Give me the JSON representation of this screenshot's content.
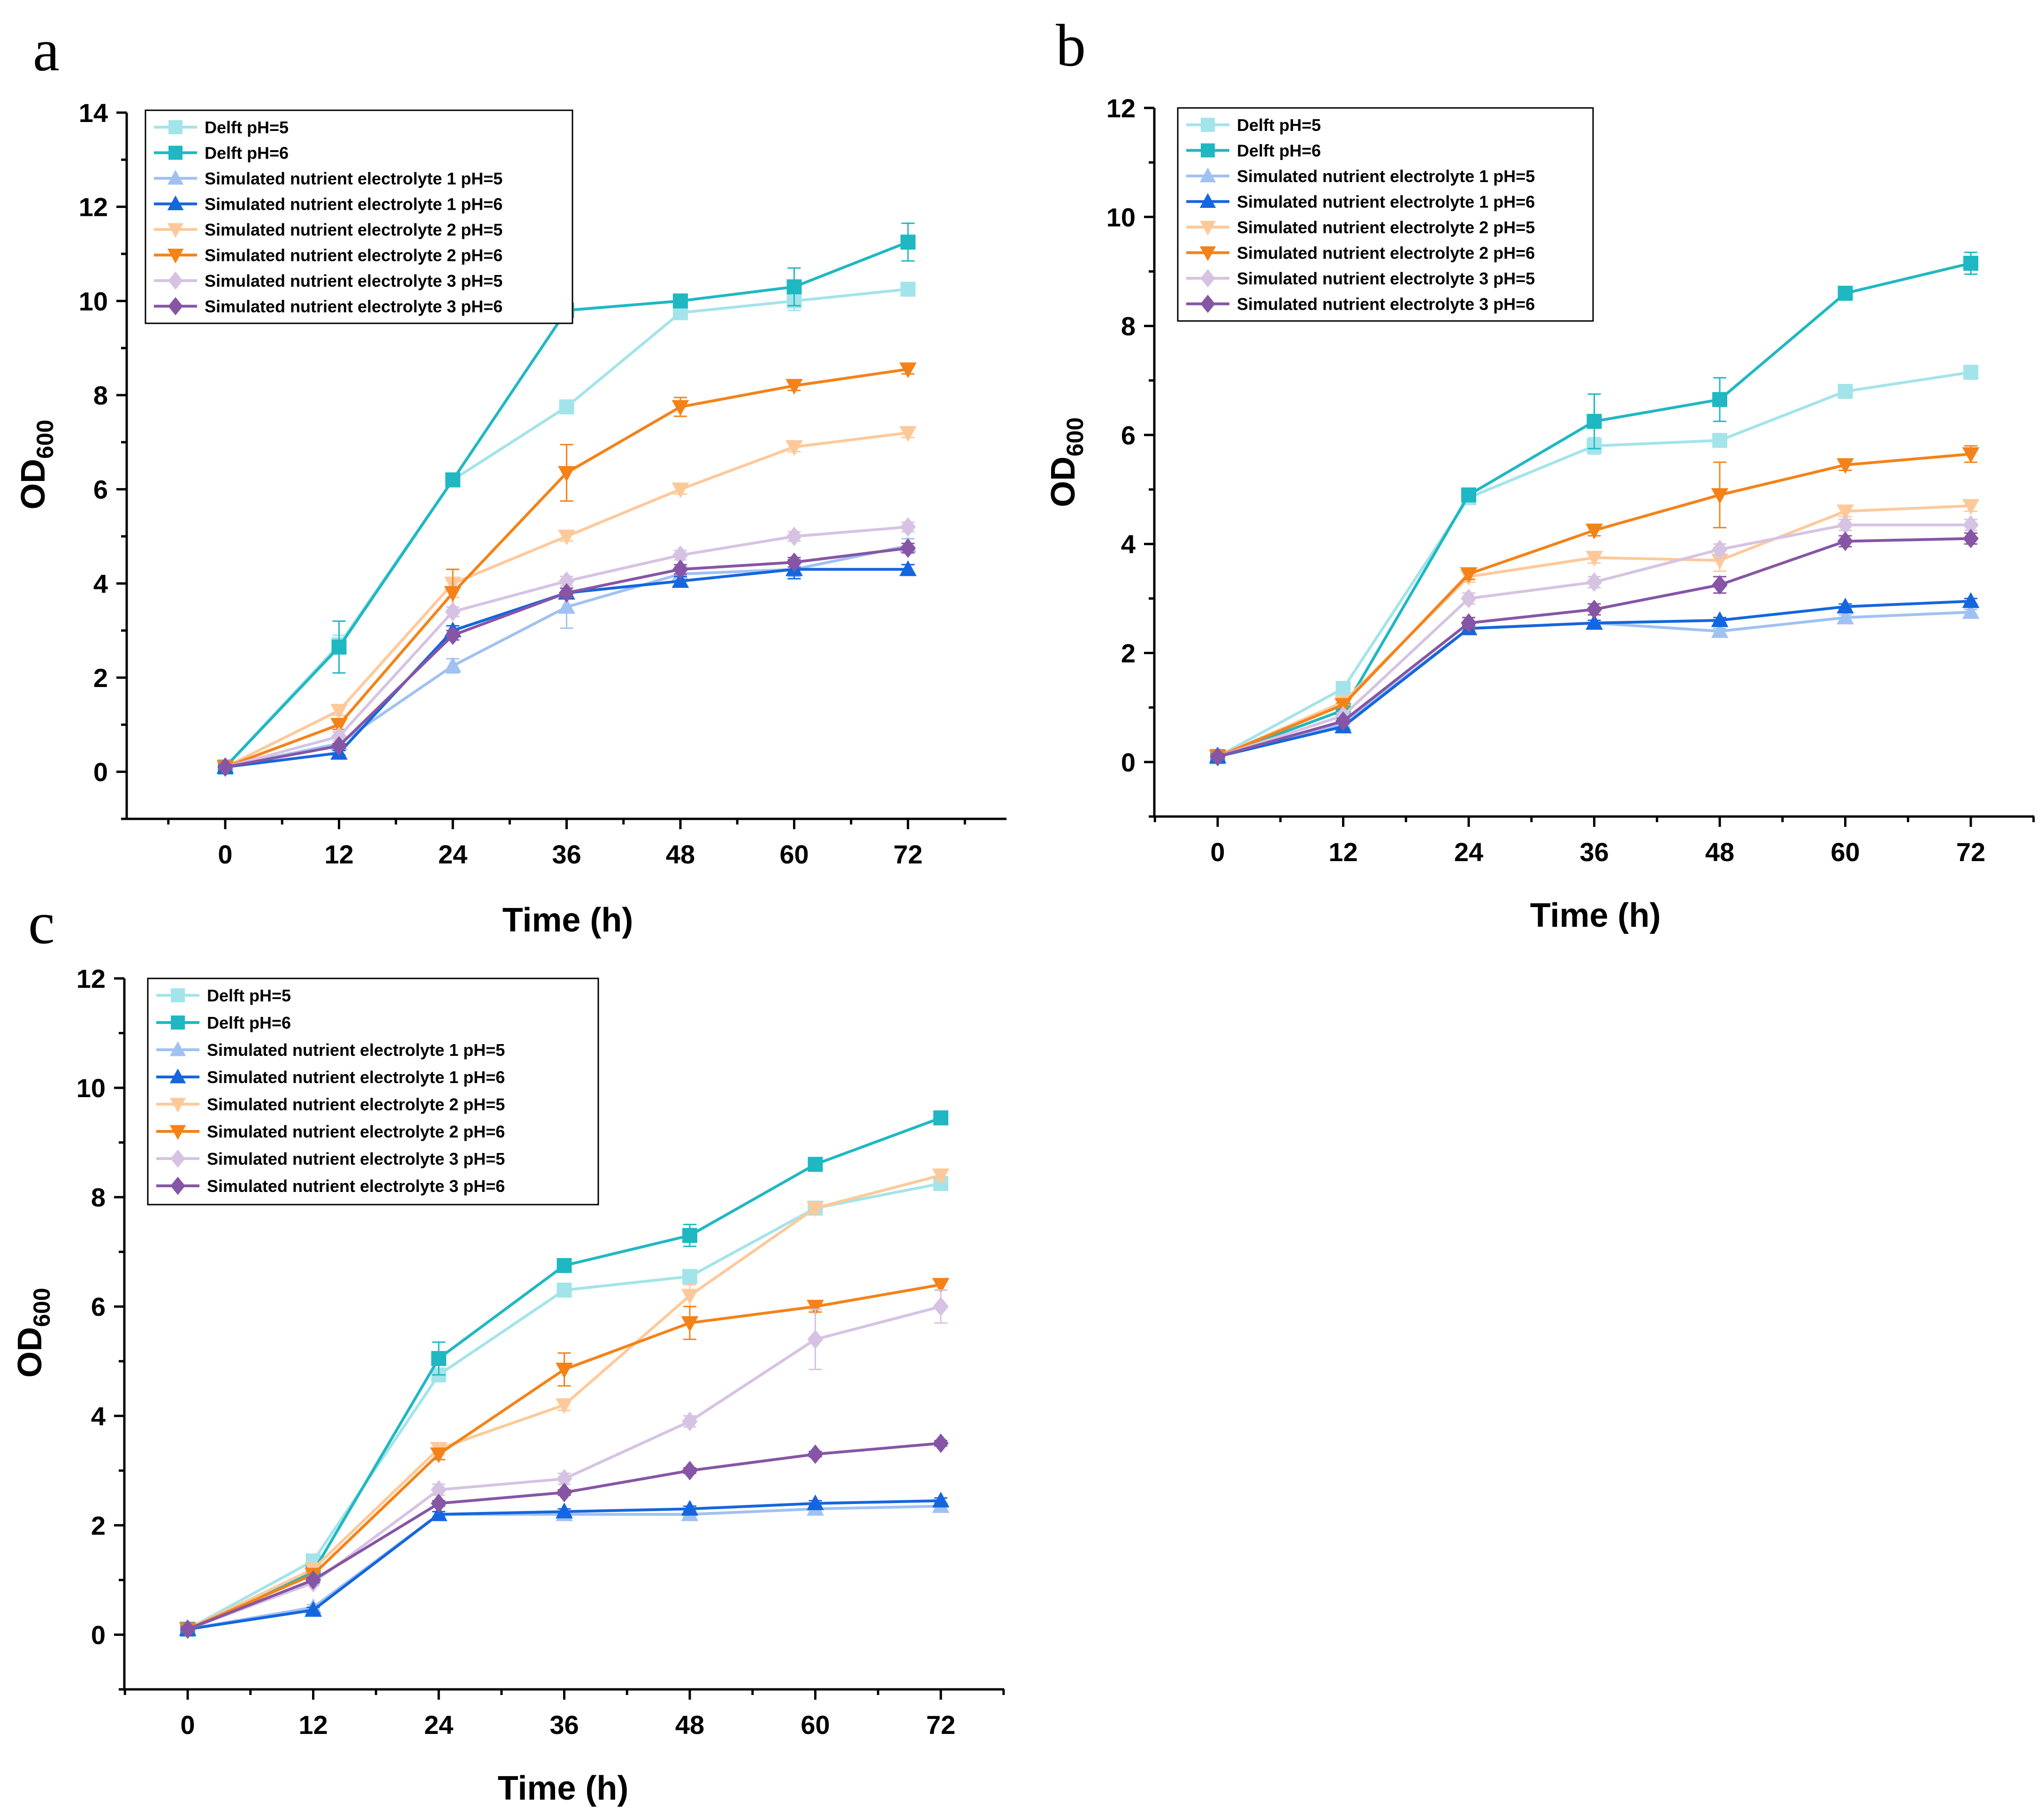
{
  "colors": {
    "Delft pH=5": "#a3e4ea",
    "Delft pH=6": "#1fb8c2",
    "Simulated nutrient electrolyte 1 pH=5": "#a0c1f2",
    "Simulated nutrient electrolyte 1 pH=6": "#1466de",
    "Simulated nutrient electrolyte 2 pH=5": "#fec99a",
    "Simulated nutrient electrolyte 2 pH=6": "#f48218",
    "Simulated nutrient electrolyte 3 pH=5": "#d6c3e3",
    "Simulated nutrient electrolyte 3 pH=6": "#8655a5"
  },
  "markers": {
    "Delft pH=5": "square",
    "Delft pH=6": "square",
    "Simulated nutrient electrolyte 1 pH=5": "triangle-up",
    "Simulated nutrient electrolyte 1 pH=6": "triangle-up",
    "Simulated nutrient electrolyte 2 pH=5": "triangle-down",
    "Simulated nutrient electrolyte 2 pH=6": "triangle-down",
    "Simulated nutrient electrolyte 3 pH=5": "diamond",
    "Simulated nutrient electrolyte 3 pH=6": "diamond"
  },
  "chart_data": [
    {
      "panel": "a",
      "type": "line",
      "xlabel": "Time (h)",
      "ylabel": "OD",
      "ylabel_sub": "600",
      "x": [
        0,
        12,
        24,
        36,
        48,
        60,
        72
      ],
      "xticks": [
        "0",
        "12",
        "24",
        "36",
        "48",
        "60",
        "72"
      ],
      "yticks": [
        "0",
        "2",
        "4",
        "6",
        "8",
        "10",
        "12",
        "14"
      ],
      "ylim": [
        -1,
        14
      ],
      "legend_position": "top-left",
      "series": [
        {
          "name": "Delft pH=5",
          "values": [
            0.1,
            2.7,
            6.2,
            7.75,
            9.75,
            10.0,
            10.25
          ],
          "errors": [
            0.05,
            0.2,
            0.1,
            0.1,
            0.1,
            0.2,
            0.1
          ]
        },
        {
          "name": "Delft pH=6",
          "values": [
            0.1,
            2.65,
            6.2,
            9.8,
            10.0,
            10.3,
            11.25
          ],
          "errors": [
            0.05,
            0.55,
            0.1,
            0.1,
            0.1,
            0.4,
            0.4
          ]
        },
        {
          "name": "Simulated nutrient electrolyte 1 pH=5",
          "values": [
            0.1,
            0.6,
            2.25,
            3.5,
            4.2,
            4.3,
            4.8
          ],
          "errors": [
            0.05,
            0.1,
            0.15,
            0.45,
            0.15,
            0.15,
            0.15
          ]
        },
        {
          "name": "Simulated nutrient electrolyte 1 pH=6",
          "values": [
            0.1,
            0.4,
            3.0,
            3.8,
            4.05,
            4.3,
            4.3
          ],
          "errors": [
            0.05,
            0.05,
            0.1,
            0.1,
            0.1,
            0.2,
            0.1
          ]
        },
        {
          "name": "Simulated nutrient electrolyte 2 pH=5",
          "values": [
            0.1,
            1.3,
            4.0,
            5.0,
            6.0,
            6.9,
            7.2
          ],
          "errors": [
            0.05,
            0.1,
            0.3,
            0.1,
            0.1,
            0.1,
            0.1
          ]
        },
        {
          "name": "Simulated nutrient electrolyte 2 pH=6",
          "values": [
            0.1,
            1.0,
            3.8,
            6.35,
            7.75,
            8.2,
            8.55
          ],
          "errors": [
            0.05,
            0.1,
            0.5,
            0.6,
            0.2,
            0.1,
            0.1
          ]
        },
        {
          "name": "Simulated nutrient electrolyte 3 pH=5",
          "values": [
            0.1,
            0.75,
            3.4,
            4.05,
            4.6,
            5.0,
            5.2
          ],
          "errors": [
            0.05,
            0.1,
            0.1,
            0.1,
            0.1,
            0.1,
            0.1
          ]
        },
        {
          "name": "Simulated nutrient electrolyte 3 pH=6",
          "values": [
            0.1,
            0.55,
            2.9,
            3.8,
            4.3,
            4.45,
            4.75
          ],
          "errors": [
            0.05,
            0.05,
            0.1,
            0.1,
            0.1,
            0.1,
            0.1
          ]
        }
      ]
    },
    {
      "panel": "b",
      "type": "line",
      "xlabel": "Time (h)",
      "ylabel": "OD",
      "ylabel_sub": "600",
      "x": [
        0,
        12,
        24,
        36,
        48,
        60,
        72
      ],
      "xticks": [
        "0",
        "12",
        "24",
        "36",
        "48",
        "60",
        "72"
      ],
      "yticks": [
        "0",
        "2",
        "4",
        "6",
        "8",
        "10",
        "12"
      ],
      "ylim": [
        -1,
        12
      ],
      "legend_position": "top-left",
      "series": [
        {
          "name": "Delft pH=5",
          "values": [
            0.1,
            1.35,
            4.85,
            5.8,
            5.9,
            6.8,
            7.15
          ],
          "errors": [
            0.05,
            0.1,
            0.1,
            0.15,
            0.1,
            0.1,
            0.1
          ]
        },
        {
          "name": "Delft pH=6",
          "values": [
            0.1,
            0.95,
            4.9,
            6.25,
            6.65,
            8.6,
            9.15
          ],
          "errors": [
            0.05,
            0.1,
            0.1,
            0.5,
            0.4,
            0.1,
            0.2
          ]
        },
        {
          "name": "Simulated nutrient electrolyte 1 pH=5",
          "values": [
            0.1,
            0.7,
            2.45,
            2.55,
            2.4,
            2.65,
            2.75
          ],
          "errors": [
            0.05,
            0.05,
            0.05,
            0.05,
            0.05,
            0.05,
            0.05
          ]
        },
        {
          "name": "Simulated nutrient electrolyte 1 pH=6",
          "values": [
            0.1,
            0.65,
            2.45,
            2.55,
            2.6,
            2.85,
            2.95
          ],
          "errors": [
            0.05,
            0.05,
            0.05,
            0.05,
            0.05,
            0.05,
            0.05
          ]
        },
        {
          "name": "Simulated nutrient electrolyte 2 pH=5",
          "values": [
            0.1,
            1.1,
            3.4,
            3.75,
            3.7,
            4.6,
            4.7
          ],
          "errors": [
            0.05,
            0.05,
            0.1,
            0.1,
            0.2,
            0.1,
            0.1
          ]
        },
        {
          "name": "Simulated nutrient electrolyte 2 pH=6",
          "values": [
            0.1,
            1.05,
            3.45,
            4.25,
            4.9,
            5.45,
            5.65
          ],
          "errors": [
            0.05,
            0.05,
            0.1,
            0.1,
            0.6,
            0.1,
            0.15
          ]
        },
        {
          "name": "Simulated nutrient electrolyte 3 pH=5",
          "values": [
            0.1,
            0.85,
            3.0,
            3.3,
            3.9,
            4.35,
            4.35
          ],
          "errors": [
            0.05,
            0.05,
            0.1,
            0.1,
            0.1,
            0.1,
            0.1
          ]
        },
        {
          "name": "Simulated nutrient electrolyte 3 pH=6",
          "values": [
            0.1,
            0.75,
            2.55,
            2.8,
            3.25,
            4.05,
            4.1
          ],
          "errors": [
            0.05,
            0.05,
            0.1,
            0.1,
            0.15,
            0.1,
            0.1
          ]
        }
      ]
    },
    {
      "panel": "c",
      "type": "line",
      "xlabel": "Time (h)",
      "ylabel": "OD",
      "ylabel_sub": "600",
      "x": [
        0,
        12,
        24,
        36,
        48,
        60,
        72
      ],
      "xticks": [
        "0",
        "12",
        "24",
        "36",
        "48",
        "60",
        "72"
      ],
      "yticks": [
        "0",
        "2",
        "4",
        "6",
        "8",
        "10",
        "12"
      ],
      "ylim": [
        -1,
        12
      ],
      "legend_position": "top-left",
      "series": [
        {
          "name": "Delft pH=5",
          "values": [
            0.1,
            1.35,
            4.75,
            6.3,
            6.55,
            7.8,
            8.25
          ],
          "errors": [
            0.05,
            0.05,
            0.1,
            0.1,
            0.1,
            0.1,
            0.1
          ]
        },
        {
          "name": "Delft pH=6",
          "values": [
            0.1,
            1.15,
            5.05,
            6.75,
            7.3,
            8.6,
            9.45
          ],
          "errors": [
            0.05,
            0.05,
            0.3,
            0.1,
            0.2,
            0.1,
            0.1
          ]
        },
        {
          "name": "Simulated nutrient electrolyte 1 pH=5",
          "values": [
            0.1,
            0.5,
            2.2,
            2.2,
            2.2,
            2.3,
            2.35
          ],
          "errors": [
            0.05,
            0.05,
            0.05,
            0.05,
            0.05,
            0.05,
            0.05
          ]
        },
        {
          "name": "Simulated nutrient electrolyte 1 pH=6",
          "values": [
            0.1,
            0.45,
            2.2,
            2.25,
            2.3,
            2.4,
            2.45
          ],
          "errors": [
            0.05,
            0.05,
            0.05,
            0.05,
            0.05,
            0.05,
            0.05
          ]
        },
        {
          "name": "Simulated nutrient electrolyte 2 pH=5",
          "values": [
            0.1,
            1.2,
            3.4,
            4.2,
            6.2,
            7.8,
            8.4
          ],
          "errors": [
            0.05,
            0.05,
            0.1,
            0.1,
            0.2,
            0.1,
            0.1
          ]
        },
        {
          "name": "Simulated nutrient electrolyte 2 pH=6",
          "values": [
            0.1,
            1.1,
            3.3,
            4.85,
            5.7,
            6.0,
            6.4
          ],
          "errors": [
            0.05,
            0.05,
            0.1,
            0.3,
            0.3,
            0.1,
            0.1
          ]
        },
        {
          "name": "Simulated nutrient electrolyte 3 pH=5",
          "values": [
            0.1,
            0.95,
            2.65,
            2.85,
            3.9,
            5.4,
            6.0
          ],
          "errors": [
            0.05,
            0.05,
            0.1,
            0.1,
            0.1,
            0.55,
            0.3
          ]
        },
        {
          "name": "Simulated nutrient electrolyte 3 pH=6",
          "values": [
            0.1,
            1.0,
            2.4,
            2.6,
            3.0,
            3.3,
            3.5
          ],
          "errors": [
            0.05,
            0.05,
            0.05,
            0.05,
            0.05,
            0.05,
            0.05
          ]
        }
      ]
    }
  ]
}
